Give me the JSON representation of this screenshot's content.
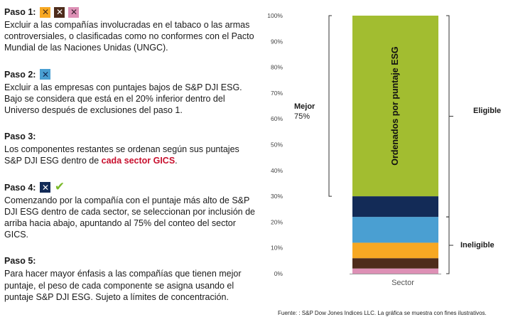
{
  "steps": [
    {
      "title": "Paso 1:",
      "badges": [
        "orange-x-icon",
        "brown-x-icon",
        "pink-x-icon"
      ],
      "text": "Excluir a las compañías involucradas en el tabaco o las armas controversiales, o clasificadas como no conformes con el Pacto Mundial de las Naciones Unidas (UNGC)."
    },
    {
      "title": "Paso 2:",
      "badges": [
        "blue-x-icon"
      ],
      "text": "Excluir a las empresas con puntajes bajos de  S&P DJI ESG. Bajo se considera que está en el 20% inferior dentro del Universo después de exclusiones del paso 1."
    },
    {
      "title": "Paso 3:",
      "badges": [],
      "text_before": "Los componentes restantes se ordenan según sus puntajes S&P DJI ESG dentro de ",
      "highlight": "cada sector GICS",
      "text_after": "."
    },
    {
      "title": "Paso 4:",
      "badges": [
        "navy-x-icon",
        "green-check-icon"
      ],
      "text": "Comenzando por la compañía con el puntaje más alto de S&P DJI ESG dentro de cada sector, se seleccionan por inclusión de arriba hacia abajo, apuntando al 75% del conteo del sector GICS."
    },
    {
      "title": "Paso 5:",
      "badges": [],
      "text": "Para hacer mayor énfasis a las compañías que tienen mejor puntaje, el peso de cada componente se asigna usando el puntaje S&P DJI ESG. Sujeto a límites de concentración."
    }
  ],
  "badge_glyphs": {
    "x": "✕",
    "check": "✔"
  },
  "chart_data": {
    "type": "bar",
    "stacked": true,
    "categories": [
      "Sector"
    ],
    "ylim": [
      0,
      100
    ],
    "yticks": [
      "0%",
      "10%",
      "20%",
      "30%",
      "40%",
      "50%",
      "60%",
      "70%",
      "80%",
      "90%",
      "100%"
    ],
    "series": [
      {
        "segment": "pink",
        "values": [
          2
        ],
        "color": "#dd90b5"
      },
      {
        "segment": "brown",
        "values": [
          4
        ],
        "color": "#4e2c1b"
      },
      {
        "segment": "orange",
        "values": [
          6
        ],
        "color": "#f7a823"
      },
      {
        "segment": "blue",
        "values": [
          10
        ],
        "color": "#4a9fd2"
      },
      {
        "segment": "navy",
        "values": [
          8
        ],
        "color": "#132b57"
      },
      {
        "segment": "green",
        "values": [
          70
        ],
        "color": "#a2bd30"
      }
    ],
    "bar_label": "Ordenados por puntaje ESG",
    "annotations": {
      "mejor_label": "Mejor",
      "mejor_pct": "75%",
      "mejor_range": [
        30,
        100
      ],
      "eligible_label": "Eligible",
      "eligible_range": [
        22,
        100
      ],
      "ineligible_label": "Ineligible",
      "ineligible_range": [
        0,
        22
      ]
    }
  },
  "source": "Fuente: : S&P Dow Jones Indices LLC. La gráfica se muestra con fines ilustrativos."
}
